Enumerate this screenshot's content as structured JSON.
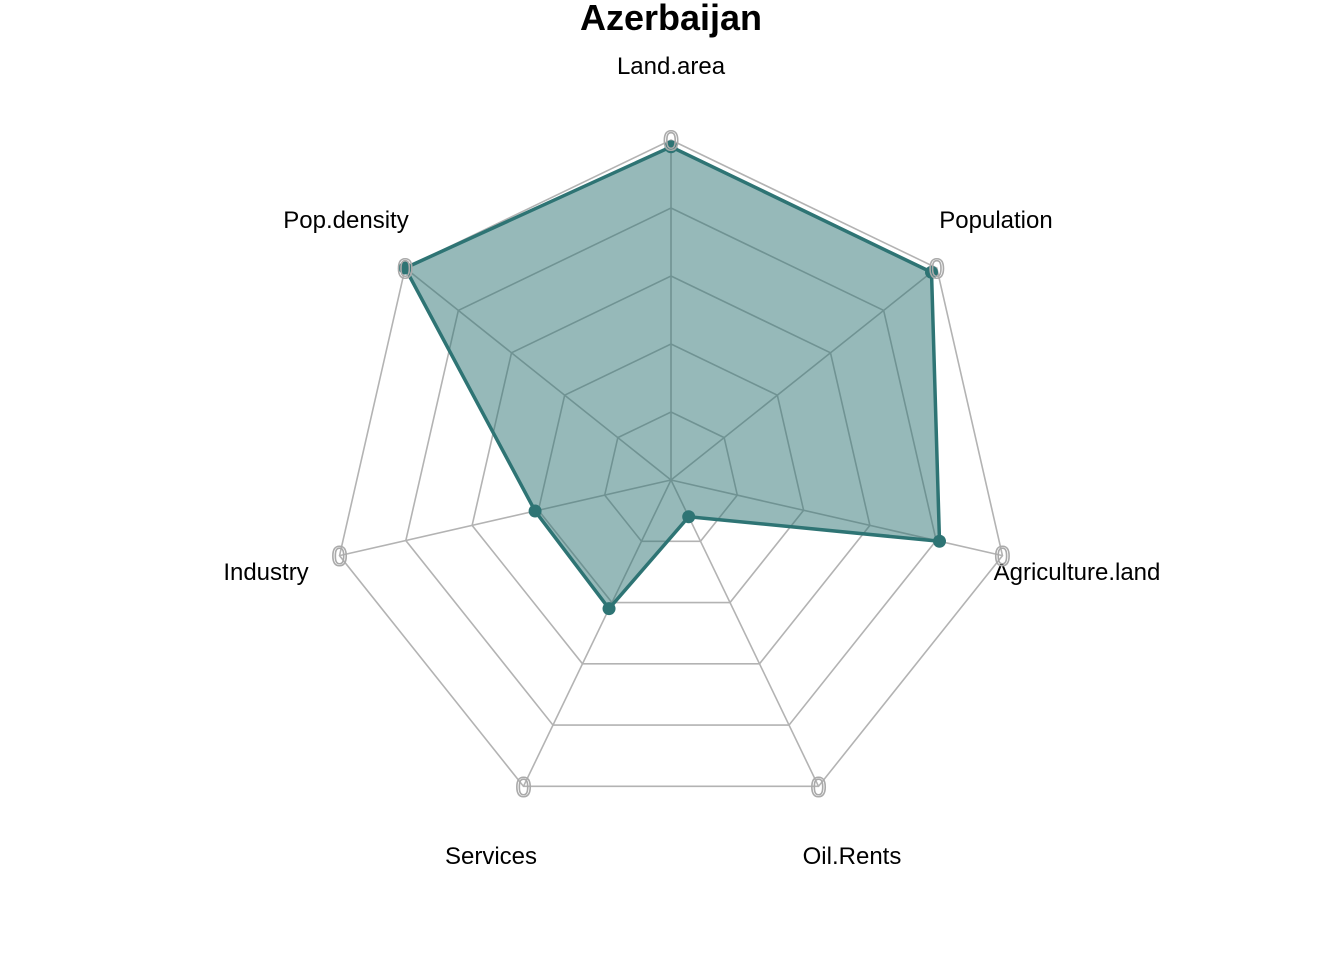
{
  "chart_data": {
    "type": "radar",
    "title": "Azerbaijan",
    "axes": [
      "Land.area",
      "Population",
      "Agriculture.land",
      "Oil.Rents",
      "Services",
      "Industry",
      "Pop.density"
    ],
    "axis_tick_label": "0",
    "range": [
      0,
      1
    ],
    "grid_levels": 5,
    "series": [
      {
        "values": [
          0.98,
          0.98,
          0.81,
          0.12,
          0.42,
          0.41,
          1.0
        ]
      }
    ],
    "colors": {
      "series_line": "#2e7474",
      "series_fill": "#2e7474",
      "series_fill_opacity": 0.5,
      "grid": "#b3b3b3"
    },
    "legend": "none"
  }
}
